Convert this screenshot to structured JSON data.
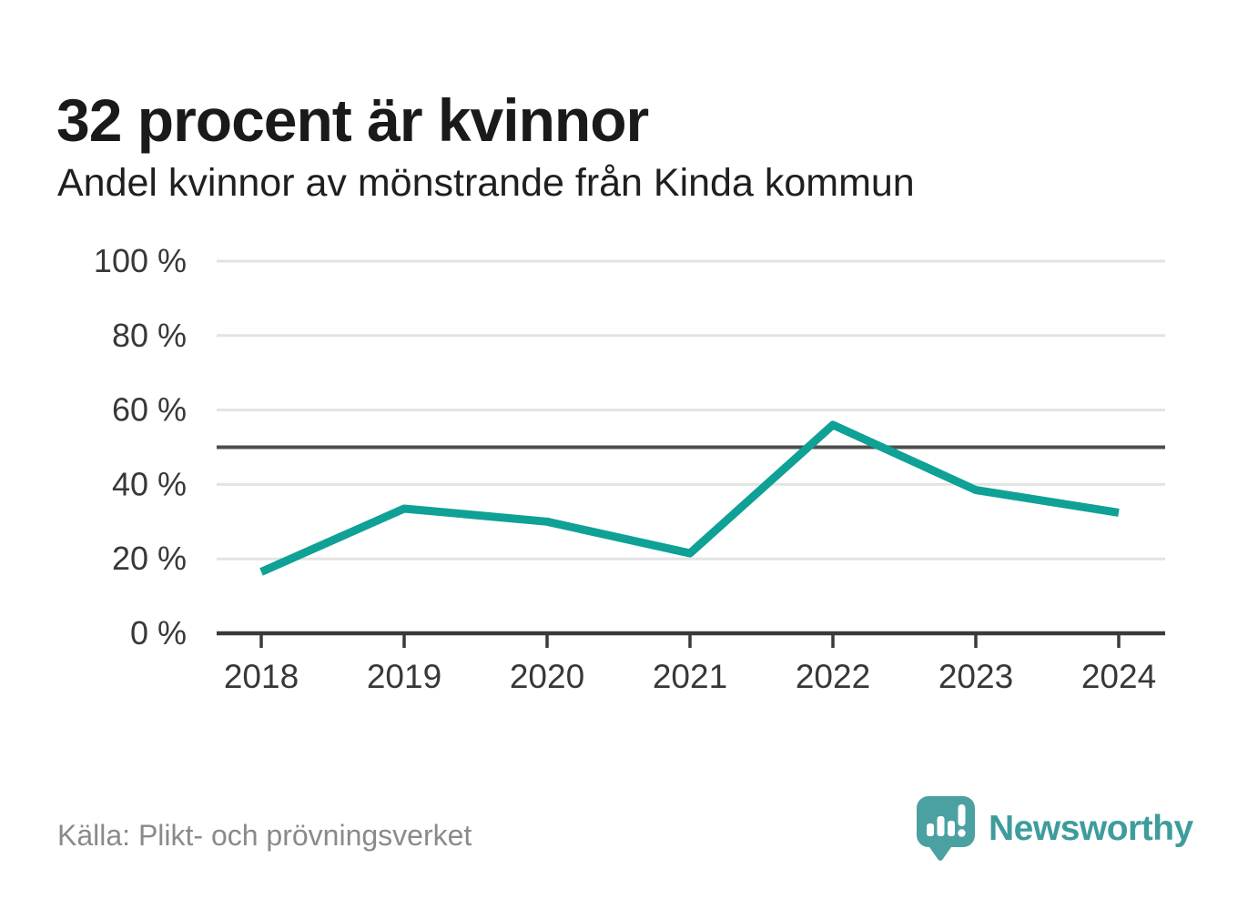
{
  "chart_data": {
    "type": "line",
    "title": "32 procent är kvinnor",
    "subtitle": "Andel kvinnor av mönstrande från Kinda kommun",
    "categories": [
      "2018",
      "2019",
      "2020",
      "2021",
      "2022",
      "2023",
      "2024"
    ],
    "series": [
      {
        "name": "Andel kvinnor av mönstrande",
        "values": [
          16.5,
          33.5,
          30,
          21.5,
          56,
          38.5,
          32.4
        ]
      }
    ],
    "xlabel": "",
    "ylabel": "",
    "ylim": [
      0,
      100
    ],
    "y_ticks": [
      0,
      20,
      40,
      60,
      80,
      100
    ],
    "y_tick_labels": [
      "0 %",
      "20 %",
      "40 %",
      "60 %",
      "80 %",
      "100 %"
    ],
    "reference_line": 50,
    "grid": true,
    "legend_position": "none",
    "colors": {
      "line": "#0FA195",
      "grid": "#E3E3E3",
      "axis": "#3A3A3A",
      "reference": "#4E4E4E",
      "tick_label": "#383838"
    }
  },
  "footer": {
    "source": "Källa: Plikt- och prövningsverket",
    "brand": {
      "name": "Newsworthy",
      "text_color": "#3E9C9D",
      "icon_color": "#4BA1A2",
      "icon": "newsworthy-speech-bubble-chart-icon"
    }
  }
}
